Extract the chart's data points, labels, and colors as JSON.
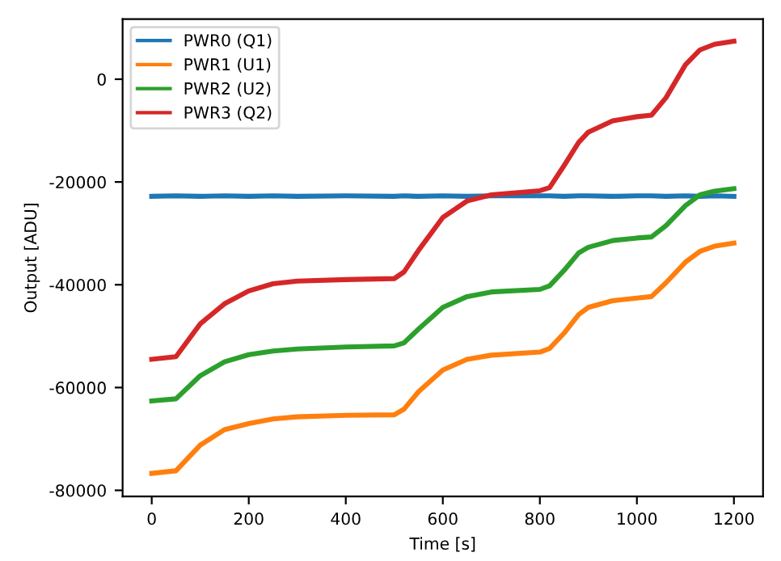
{
  "chart_data": {
    "type": "line",
    "xlabel": "Time [s]",
    "ylabel": "Output [ADU]",
    "x": [
      0,
      50,
      100,
      150,
      200,
      250,
      300,
      400,
      500,
      520,
      550,
      600,
      650,
      700,
      800,
      820,
      850,
      880,
      900,
      950,
      1000,
      1030,
      1060,
      1100,
      1130,
      1160,
      1200
    ],
    "series": [
      {
        "name": "PWR0 (Q1)",
        "color": "#1f77b4",
        "values": [
          -22800,
          -22700,
          -22800,
          -22700,
          -22800,
          -22700,
          -22800,
          -22700,
          -22800,
          -22700,
          -22800,
          -22700,
          -22800,
          -22700,
          -22700,
          -22700,
          -22800,
          -22700,
          -22700,
          -22800,
          -22700,
          -22700,
          -22800,
          -22700,
          -22800,
          -22700,
          -22800
        ]
      },
      {
        "name": "PWR1 (U1)",
        "color": "#ff7f0e",
        "values": [
          -76700,
          -76200,
          -71200,
          -68200,
          -67000,
          -66100,
          -65700,
          -65400,
          -65300,
          -64200,
          -60800,
          -56600,
          -54500,
          -53700,
          -53100,
          -52400,
          -49400,
          -45800,
          -44400,
          -43100,
          -42600,
          -42300,
          -39600,
          -35600,
          -33500,
          -32500,
          -31900
        ]
      },
      {
        "name": "PWR2 (U2)",
        "color": "#2ca02c",
        "values": [
          -62600,
          -62200,
          -57700,
          -55000,
          -53600,
          -52900,
          -52500,
          -52100,
          -51900,
          -51300,
          -48600,
          -44400,
          -42300,
          -41400,
          -40900,
          -40200,
          -37200,
          -33800,
          -32700,
          -31400,
          -30900,
          -30700,
          -28500,
          -24600,
          -22500,
          -21800,
          -21300
        ]
      },
      {
        "name": "PWR3 (Q2)",
        "color": "#d62728",
        "values": [
          -54500,
          -54000,
          -47600,
          -43700,
          -41200,
          -39800,
          -39300,
          -39000,
          -38800,
          -37500,
          -33300,
          -26900,
          -23700,
          -22500,
          -21700,
          -21100,
          -16800,
          -12300,
          -10300,
          -8100,
          -7300,
          -7000,
          -3600,
          2800,
          5700,
          6800,
          7400
        ]
      }
    ],
    "xlim": [
      -60,
      1260
    ],
    "xticks": [
      0,
      200,
      400,
      600,
      800,
      1000,
      1200
    ],
    "ylim": [
      -81200,
      11700
    ],
    "yticks": [
      -80000,
      -60000,
      -40000,
      -20000,
      0
    ],
    "legend": "top left",
    "grid": false,
    "marker": "none",
    "line_style": "solid"
  }
}
